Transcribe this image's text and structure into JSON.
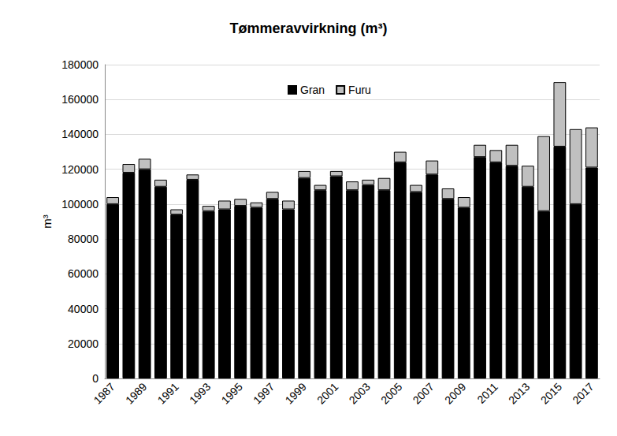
{
  "chart_data": {
    "type": "bar",
    "title": "Tømmeravvirkning (m³)",
    "y_label": "m³",
    "categories": [
      "1987",
      null,
      "1989",
      null,
      "1991",
      null,
      "1993",
      null,
      "1995",
      null,
      "1997",
      null,
      "1999",
      null,
      "2001",
      null,
      "2003",
      null,
      "2005",
      null,
      "2007",
      null,
      "2009",
      null,
      "2011",
      null,
      "2013",
      null,
      "2015",
      null,
      "2017"
    ],
    "series": [
      {
        "name": "Gran",
        "color": "#000000",
        "values": [
          100000,
          118000,
          120000,
          110000,
          94000,
          114000,
          96000,
          97000,
          99000,
          98000,
          103000,
          97000,
          115000,
          108000,
          116000,
          108000,
          111000,
          108000,
          124000,
          107000,
          117000,
          103000,
          98000,
          127000,
          124000,
          122000,
          110000,
          96000,
          133000,
          100000,
          121000
        ]
      },
      {
        "name": "Furu",
        "color": "#c0c0c0",
        "values": [
          4000,
          5000,
          6000,
          4000,
          3000,
          3000,
          3000,
          5000,
          4000,
          3000,
          4000,
          5000,
          4000,
          3000,
          3000,
          5000,
          3000,
          7000,
          6000,
          4000,
          8000,
          6000,
          6000,
          7000,
          7000,
          12000,
          12000,
          43000,
          37000,
          43000,
          23000
        ]
      }
    ],
    "ylim": [
      0,
      180000
    ],
    "yticks": [
      0,
      20000,
      40000,
      60000,
      80000,
      100000,
      120000,
      140000,
      160000,
      180000
    ],
    "grid": true,
    "stacked": true,
    "legend": "top"
  }
}
